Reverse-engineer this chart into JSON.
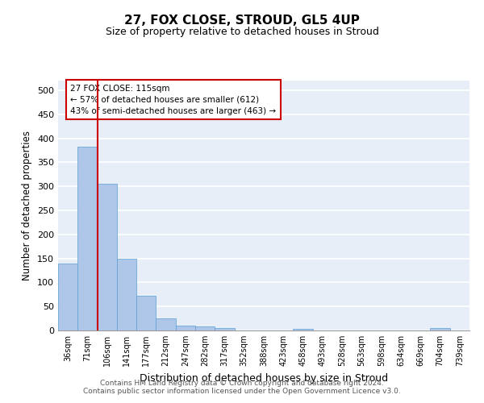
{
  "title": "27, FOX CLOSE, STROUD, GL5 4UP",
  "subtitle": "Size of property relative to detached houses in Stroud",
  "xlabel": "Distribution of detached houses by size in Stroud",
  "ylabel": "Number of detached properties",
  "bar_labels": [
    "36sqm",
    "71sqm",
    "106sqm",
    "141sqm",
    "177sqm",
    "212sqm",
    "247sqm",
    "282sqm",
    "317sqm",
    "352sqm",
    "388sqm",
    "423sqm",
    "458sqm",
    "493sqm",
    "528sqm",
    "563sqm",
    "598sqm",
    "634sqm",
    "669sqm",
    "704sqm",
    "739sqm"
  ],
  "bar_values": [
    140,
    383,
    305,
    150,
    72,
    25,
    10,
    9,
    5,
    0,
    0,
    0,
    4,
    0,
    0,
    0,
    0,
    0,
    0,
    5,
    0
  ],
  "bar_color": "#aec6e8",
  "bar_edge_color": "#5a9fd4",
  "vline_color": "#cc0000",
  "annotation_text": "27 FOX CLOSE: 115sqm\n← 57% of detached houses are smaller (612)\n43% of semi-detached houses are larger (463) →",
  "annotation_box_color": "#ffffff",
  "annotation_box_edge": "#cc0000",
  "ylim": [
    0,
    520
  ],
  "yticks": [
    0,
    50,
    100,
    150,
    200,
    250,
    300,
    350,
    400,
    450,
    500
  ],
  "footnote": "Contains HM Land Registry data © Crown copyright and database right 2024.\nContains public sector information licensed under the Open Government Licence v3.0.",
  "background_color": "#e8eef8",
  "grid_color": "#ffffff"
}
